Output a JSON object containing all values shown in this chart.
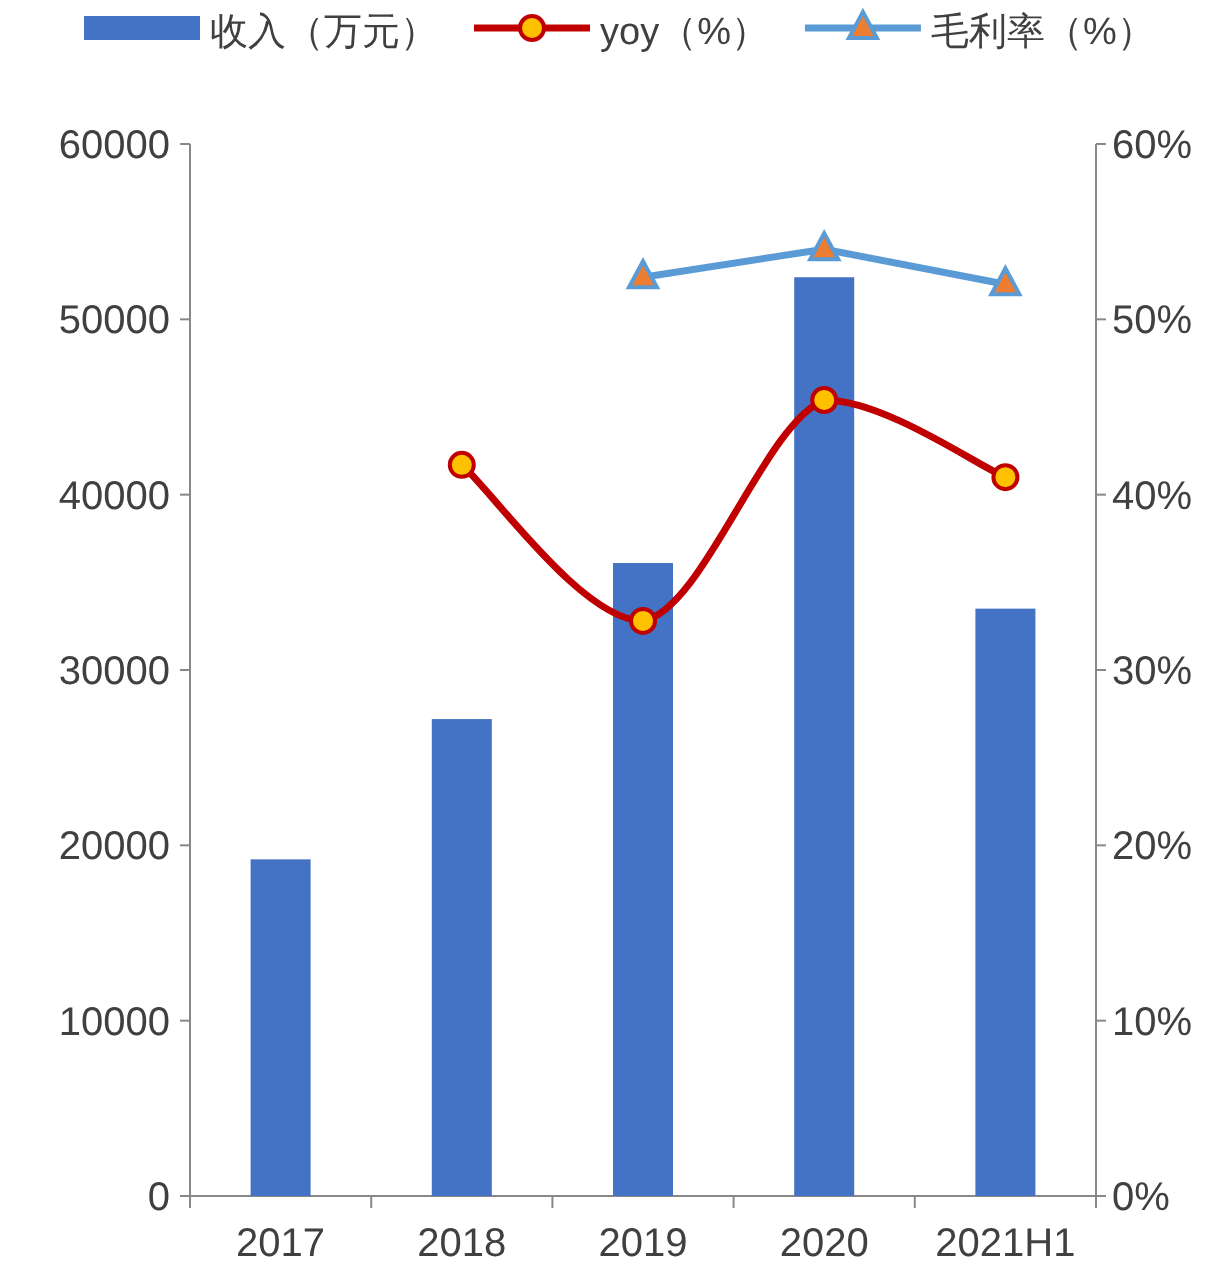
{
  "chart_data": {
    "type": "bar",
    "categories": [
      "2017",
      "2018",
      "2019",
      "2020",
      "2021H1"
    ],
    "series": [
      {
        "name": "收入（万元）",
        "color": "#4472c4",
        "values": [
          19200,
          27200,
          36100,
          52400,
          33500
        ]
      },
      {
        "name": "yoy（%）",
        "type": "line",
        "axis": "y2",
        "color": "#c00000",
        "marker": "circle",
        "values": [
          null,
          41.7,
          32.8,
          45.4,
          41.0
        ]
      },
      {
        "name": "毛利率（%）",
        "type": "line",
        "axis": "y2",
        "color": "#5b9bd5",
        "marker": "triangle",
        "values": [
          null,
          null,
          52.4,
          54.0,
          52.0
        ]
      }
    ],
    "ylim": [
      0,
      60000
    ],
    "yticks": [
      0,
      10000,
      20000,
      30000,
      40000,
      50000,
      60000
    ],
    "y2lim": [
      0,
      60
    ],
    "y2ticks": [
      {
        "value": 0,
        "label": "0%"
      },
      {
        "value": 10,
        "label": "10%"
      },
      {
        "value": 20,
        "label": "20%"
      },
      {
        "value": 30,
        "label": "30%"
      },
      {
        "value": 40,
        "label": "40%"
      },
      {
        "value": 50,
        "label": "50%"
      },
      {
        "value": 60,
        "label": "60%"
      }
    ],
    "legend": "top",
    "grid": false
  }
}
